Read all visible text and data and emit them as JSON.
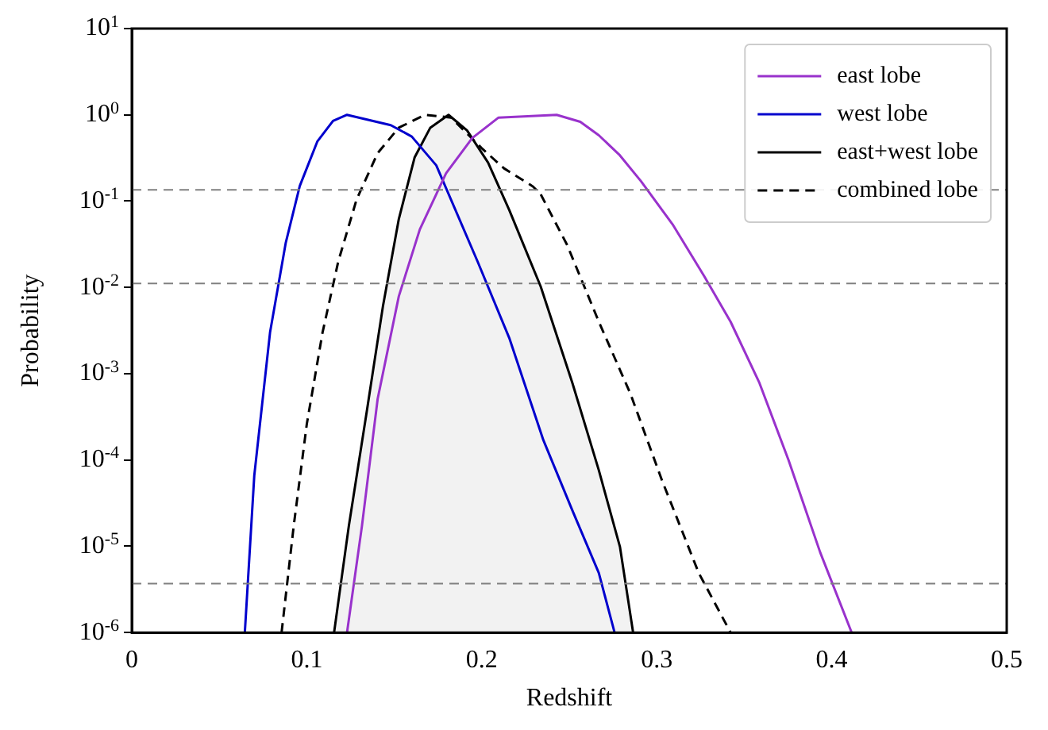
{
  "chart_data": {
    "type": "line",
    "xlabel": "Redshift",
    "ylabel": "Probability",
    "log": "y",
    "legend": "top right",
    "grid": false,
    "marker": "none",
    "xlim": [
      0,
      0.5
    ],
    "xticks": [
      0,
      0.1,
      0.2,
      0.3,
      0.4,
      0.5
    ],
    "ylim": [
      1e-06,
      10
    ],
    "yticks": [
      {
        "value": 1e-06,
        "label": "10$^{-6}$"
      },
      {
        "value": 1e-05,
        "label": "10$^{-5}$"
      },
      {
        "value": 0.0001,
        "label": "10$^{-4}$"
      },
      {
        "value": 0.001,
        "label": "10$^{-3}$"
      },
      {
        "value": 0.01,
        "label": "10$^{-2}$"
      },
      {
        "value": 0.1,
        "label": "10$^{-1}$"
      },
      {
        "value": 1,
        "label": "10$^{0}$"
      },
      {
        "value": 10,
        "label": "10$^{1}$"
      }
    ],
    "series": [
      {
        "name": "east lobe",
        "color": "#9932cc",
        "line_style": "solid",
        "x": [
          0.123,
          0.1315,
          0.1405,
          0.1526,
          0.1646,
          0.1796,
          0.1946,
          0.2096,
          0.2428,
          0.2563,
          0.2669,
          0.2789,
          0.291,
          0.309,
          0.3271,
          0.3422,
          0.3587,
          0.3753,
          0.3934,
          0.4114
        ],
        "values": [
          1e-06,
          1.7e-05,
          0.00051,
          0.0079,
          0.047,
          0.21,
          0.54,
          0.93,
          1.0,
          0.83,
          0.58,
          0.34,
          0.17,
          0.054,
          0.0135,
          0.004,
          0.00078,
          0.0001,
          8.5e-06,
          1e-06
        ]
      },
      {
        "name": "west lobe",
        "color": "#0000cd",
        "line_style": "solid",
        "x": [
          0.0646,
          0.07,
          0.079,
          0.088,
          0.096,
          0.106,
          0.115,
          0.123,
          0.148,
          0.16,
          0.174,
          0.1976,
          0.2157,
          0.2352,
          0.2518,
          0.2669,
          0.2759
        ],
        "values": [
          1e-06,
          6.6e-05,
          0.003,
          0.033,
          0.15,
          0.49,
          0.85,
          1.0,
          0.76,
          0.56,
          0.26,
          0.02,
          0.0026,
          0.00017,
          2.6e-05,
          4.9e-06,
          1e-06
        ]
      },
      {
        "name": "east+west lobe",
        "type": "area",
        "color": "#000000",
        "line_style": "solid",
        "x": [
          0.1156,
          0.124,
          0.1345,
          0.1435,
          0.1526,
          0.1616,
          0.1706,
          0.181,
          0.1916,
          0.2036,
          0.2157,
          0.2337,
          0.2518,
          0.2669,
          0.279,
          0.2865
        ],
        "values": [
          1e-06,
          1.7e-05,
          0.00039,
          0.006,
          0.062,
          0.32,
          0.71,
          1.0,
          0.66,
          0.28,
          0.079,
          0.0102,
          0.00078,
          7.6e-05,
          9.8e-06,
          1e-06
        ]
      },
      {
        "name": "combined lobe",
        "color": "#000000",
        "line_style": "dashed",
        "x": [
          0.0856,
          0.0925,
          0.1,
          0.109,
          0.118,
          0.1285,
          0.1405,
          0.1526,
          0.1676,
          0.1825,
          0.2,
          0.2127,
          0.2292,
          0.2337,
          0.2488,
          0.2669,
          0.2849,
          0.303,
          0.324,
          0.3422
        ],
        "values": [
          1e-06,
          1.7e-05,
          0.00026,
          0.003,
          0.02,
          0.105,
          0.36,
          0.71,
          1.0,
          0.93,
          0.41,
          0.24,
          0.148,
          0.12,
          0.031,
          0.004,
          0.00059,
          5.8e-05,
          4.9e-06,
          1e-06
        ]
      }
    ],
    "ref_lines": [
      {
        "axis": "y",
        "value": 0.135,
        "color": "#808080",
        "line_style": "dashed"
      },
      {
        "axis": "y",
        "value": 0.0111,
        "color": "#808080",
        "line_style": "dashed"
      },
      {
        "axis": "y",
        "value": 3.7e-06,
        "color": "#808080",
        "line_style": "dashed"
      }
    ]
  }
}
